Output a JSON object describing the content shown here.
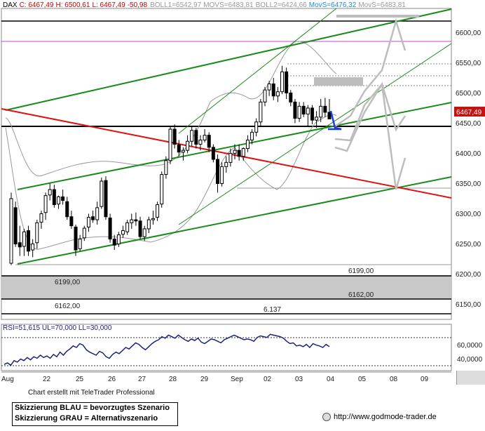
{
  "header": {
    "symbol": "DAX",
    "close_text": "C: 6467,49",
    "high_text": "H: 6500,61",
    "low_text": "L: 6467,49",
    "change_text": "-50,98",
    "boll1_text": "BOLL1=6542,97",
    "movs1_text": "MOVS=6483,81",
    "boll2_text": "BOLL2=6424,66",
    "movs2_text": "MovS=6476,32",
    "movs3_text": "MovS=6483,81"
  },
  "price_axis": {
    "ticks": [
      "6600,00",
      "6550,00",
      "6500,00",
      "6450,00",
      "6400,00",
      "6350,00",
      "6300,00",
      "6250,00",
      "6200,00",
      "6150,00"
    ],
    "current_label": "6467,49"
  },
  "annotations": {
    "label_6199_right": "6199,00",
    "label_6199_left": "6199,00",
    "label_6162_right": "6162,00",
    "label_6162_left": "6162,00",
    "label_6137": "6.137"
  },
  "rsi": {
    "title": "RSI=51,615 UL=70,000 LL=30,000",
    "ticks": [
      "60,0000",
      "40,0000"
    ]
  },
  "x_axis": {
    "labels": [
      "Aug",
      "22",
      "25",
      "26",
      "27",
      "28",
      "29",
      "Sep",
      "02",
      "03",
      "04",
      "05",
      "08",
      "09"
    ]
  },
  "footer": {
    "credit": "Chart erstellt mit TeleTrader Professional",
    "legend_line1": "Skizzierung BLAU = bevorzugtes Szenario",
    "legend_line2": "Skizzierung GRAU = Alternativszenario",
    "url": "http://www.godmode-trader.de"
  },
  "colors": {
    "up": "#ffffff",
    "down": "#000000",
    "channel_green": "#1a8c1a",
    "downtrend_red": "#dd1111",
    "resistance_magenta": "#cc44cc",
    "support_zone_gray": "#c8c8c8",
    "scenario_blue": "#1a3fd6",
    "scenario_gray": "#bdbdbd",
    "rsi_line": "#1a237e",
    "current_price_bg": "#c81010"
  },
  "chart_data": {
    "type": "candlestick",
    "instrument": "DAX",
    "y_range": [
      6135,
      6650
    ],
    "x_labels": [
      "Aug",
      "22",
      "25",
      "26",
      "27",
      "28",
      "29",
      "Sep",
      "02",
      "03",
      "04",
      "05",
      "08",
      "09"
    ],
    "candles": [
      [
        6228,
        6345,
        6225,
        6335
      ],
      [
        6320,
        6330,
        6255,
        6260
      ],
      [
        6262,
        6290,
        6240,
        6255
      ],
      [
        6256,
        6285,
        6240,
        6280
      ],
      [
        6282,
        6290,
        6240,
        6248
      ],
      [
        6250,
        6268,
        6238,
        6260
      ],
      [
        6262,
        6300,
        6252,
        6295
      ],
      [
        6296,
        6315,
        6285,
        6310
      ],
      [
        6312,
        6345,
        6300,
        6340
      ],
      [
        6341,
        6360,
        6332,
        6350
      ],
      [
        6350,
        6358,
        6320,
        6325
      ],
      [
        6326,
        6340,
        6318,
        6338
      ],
      [
        6338,
        6350,
        6325,
        6332
      ],
      [
        6330,
        6338,
        6300,
        6305
      ],
      [
        6305,
        6315,
        6285,
        6290
      ],
      [
        6288,
        6292,
        6240,
        6250
      ],
      [
        6252,
        6275,
        6248,
        6268
      ],
      [
        6270,
        6290,
        6265,
        6286
      ],
      [
        6288,
        6310,
        6280,
        6304
      ],
      [
        6305,
        6315,
        6295,
        6300
      ],
      [
        6300,
        6330,
        6292,
        6320
      ],
      [
        6322,
        6370,
        6318,
        6364
      ],
      [
        6365,
        6372,
        6300,
        6305
      ],
      [
        6303,
        6310,
        6262,
        6268
      ],
      [
        6268,
        6275,
        6250,
        6258
      ],
      [
        6260,
        6280,
        6255,
        6275
      ],
      [
        6276,
        6290,
        6270,
        6282
      ],
      [
        6280,
        6300,
        6275,
        6295
      ],
      [
        6295,
        6310,
        6285,
        6300
      ],
      [
        6300,
        6312,
        6290,
        6298
      ],
      [
        6298,
        6305,
        6268,
        6272
      ],
      [
        6272,
        6290,
        6265,
        6285
      ],
      [
        6285,
        6305,
        6278,
        6300
      ],
      [
        6300,
        6315,
        6292,
        6302
      ],
      [
        6304,
        6330,
        6298,
        6325
      ],
      [
        6326,
        6380,
        6320,
        6375
      ],
      [
        6375,
        6405,
        6368,
        6398
      ],
      [
        6398,
        6455,
        6392,
        6450
      ],
      [
        6450,
        6458,
        6418,
        6425
      ],
      [
        6424,
        6432,
        6405,
        6412
      ],
      [
        6412,
        6420,
        6398,
        6415
      ],
      [
        6415,
        6440,
        6410,
        6430
      ],
      [
        6430,
        6455,
        6422,
        6448
      ],
      [
        6448,
        6452,
        6418,
        6425
      ],
      [
        6425,
        6440,
        6415,
        6432
      ],
      [
        6432,
        6450,
        6428,
        6440
      ],
      [
        6440,
        6445,
        6412,
        6420
      ],
      [
        6420,
        6425,
        6395,
        6400
      ],
      [
        6400,
        6408,
        6345,
        6360
      ],
      [
        6360,
        6395,
        6355,
        6388
      ],
      [
        6388,
        6405,
        6378,
        6395
      ],
      [
        6395,
        6418,
        6388,
        6410
      ],
      [
        6410,
        6425,
        6400,
        6415
      ],
      [
        6415,
        6425,
        6398,
        6405
      ],
      [
        6405,
        6420,
        6398,
        6418
      ],
      [
        6418,
        6440,
        6412,
        6432
      ],
      [
        6432,
        6450,
        6425,
        6445
      ],
      [
        6445,
        6468,
        6438,
        6462
      ],
      [
        6462,
        6500,
        6455,
        6495
      ],
      [
        6495,
        6520,
        6488,
        6515
      ],
      [
        6515,
        6530,
        6505,
        6525
      ],
      [
        6525,
        6535,
        6498,
        6505
      ],
      [
        6505,
        6520,
        6495,
        6512
      ],
      [
        6512,
        6555,
        6508,
        6545
      ],
      [
        6545,
        6552,
        6500,
        6510
      ],
      [
        6510,
        6515,
        6488,
        6495
      ],
      [
        6495,
        6500,
        6460,
        6468
      ],
      [
        6468,
        6495,
        6462,
        6488
      ],
      [
        6488,
        6495,
        6470,
        6475
      ],
      [
        6475,
        6490,
        6455,
        6485
      ],
      [
        6485,
        6490,
        6458,
        6465
      ],
      [
        6465,
        6480,
        6452,
        6470
      ],
      [
        6470,
        6500,
        6462,
        6488
      ],
      [
        6488,
        6502,
        6470,
        6478
      ],
      [
        6478,
        6500,
        6467,
        6467
      ]
    ],
    "levels": {
      "resistance_black": 6620,
      "resistance_magenta": 6587,
      "support_black": 6450,
      "support_zone_upper": 6199,
      "support_zone_lower": 6162,
      "low_mark": 6137
    },
    "rsi_range": [
      20,
      80
    ],
    "rsi_upper": 70,
    "rsi_lower": 30,
    "rsi_values": [
      28,
      30,
      27,
      33,
      31,
      35,
      33,
      37,
      34,
      38,
      36,
      40,
      37,
      39,
      36,
      41,
      38,
      44,
      40,
      45,
      48,
      52,
      50,
      55,
      53,
      47,
      44,
      42,
      40,
      45,
      43,
      38,
      36,
      41,
      44,
      42,
      46,
      50,
      48,
      52,
      56,
      54,
      50,
      47,
      51,
      55,
      58,
      60,
      64,
      62,
      66,
      64,
      62,
      66,
      63,
      60,
      58,
      61,
      59,
      62,
      57,
      55,
      58,
      61,
      60,
      58,
      56,
      60,
      62,
      64,
      66,
      64,
      62,
      60,
      61,
      60,
      58,
      63,
      65,
      64,
      63,
      67,
      66,
      65,
      64,
      62,
      58,
      55,
      56,
      52,
      53,
      51,
      54,
      50,
      55,
      53,
      52,
      50,
      54,
      51
    ]
  }
}
